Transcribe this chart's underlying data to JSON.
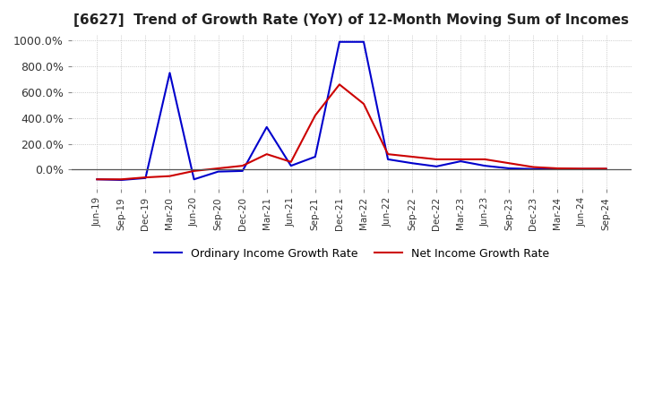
{
  "title": "[6627]  Trend of Growth Rate (YoY) of 12-Month Moving Sum of Incomes",
  "title_fontsize": 11,
  "ylim": [
    -150,
    1050
  ],
  "yticks": [
    0.0,
    200.0,
    400.0,
    600.0,
    800.0,
    1000.0
  ],
  "yticklabels": [
    "0.0%",
    "200.0%",
    "400.0%",
    "600.0%",
    "800.0%",
    "1000.0%"
  ],
  "background_color": "#ffffff",
  "grid_color": "#aaaaaa",
  "ordinary_color": "#0000cc",
  "net_color": "#cc0000",
  "legend_labels": [
    "Ordinary Income Growth Rate",
    "Net Income Growth Rate"
  ],
  "dates": [
    "Jun-19",
    "Sep-19",
    "Dec-19",
    "Mar-20",
    "Jun-20",
    "Sep-20",
    "Dec-20",
    "Mar-21",
    "Jun-21",
    "Sep-21",
    "Dec-21",
    "Mar-22",
    "Jun-22",
    "Sep-22",
    "Dec-22",
    "Mar-23",
    "Jun-23",
    "Sep-23",
    "Dec-23",
    "Mar-24",
    "Jun-24",
    "Sep-24"
  ],
  "ordinary_values": [
    -75,
    -80,
    -65,
    750,
    -75,
    -15,
    -10,
    330,
    30,
    100,
    990,
    990,
    80,
    50,
    25,
    65,
    30,
    10,
    5,
    5,
    5,
    5
  ],
  "net_values": [
    -75,
    -75,
    -60,
    -50,
    -10,
    10,
    30,
    120,
    60,
    420,
    660,
    510,
    120,
    100,
    80,
    80,
    80,
    50,
    20,
    10,
    8,
    8
  ]
}
